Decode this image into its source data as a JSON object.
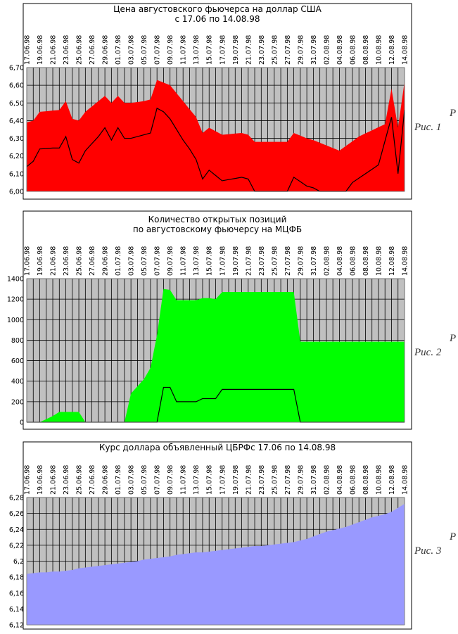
{
  "charts": [
    {
      "chart_data": {
        "type": "area",
        "title": [
          "Цена августовского фьючерса на доллар США",
          "с 17.06 по 14.08.98"
        ],
        "caption_mark": "Р",
        "caption": "Рис. 1",
        "categories": [
          "17.06.98",
          null,
          "19.06.98",
          null,
          "21.06.98",
          null,
          "23.06.98",
          null,
          "25.06.98",
          null,
          "27.06.98",
          null,
          "29.06.98",
          null,
          "01.07.98",
          null,
          "03.07.98",
          null,
          "05.07.98",
          null,
          "07.07.98",
          null,
          "09.07.98",
          null,
          "11.07.98",
          null,
          "13.07.98",
          null,
          "15.07.98",
          null,
          "17.07.98",
          null,
          "19.07.98",
          null,
          "21.07.98",
          null,
          "23.07.98",
          null,
          "25.07.98",
          null,
          "27.07.98",
          null,
          "29.07.98",
          null,
          "31.07.98",
          null,
          "02.08.98",
          null,
          "04.08.98",
          null,
          "06.08.98",
          null,
          "08.08.98",
          null,
          "10.08.98",
          null,
          "12.08.98",
          null,
          "14.08.98"
        ],
        "series": [
          {
            "style": "area",
            "color": "#ff0000",
            "values": [
              6.39,
              6.4,
              6.45,
              6.453,
              6.457,
              6.46,
              6.51,
              6.41,
              6.4,
              6.45,
              6.48,
              6.51,
              6.54,
              6.5,
              6.54,
              6.5,
              6.5,
              6.505,
              6.51,
              6.52,
              6.63,
              6.615,
              6.6,
              6.555,
              6.51,
              6.465,
              6.42,
              6.33,
              6.36,
              6.34,
              6.32,
              6.323,
              6.327,
              6.33,
              6.32,
              6.28,
              6.28,
              6.28,
              6.28,
              6.28,
              6.28,
              6.33,
              6.315,
              6.3,
              6.29,
              6.275,
              6.26,
              6.245,
              6.23,
              6.257,
              6.283,
              6.31,
              6.328,
              6.345,
              6.363,
              6.38,
              6.58,
              6.36,
              6.62
            ]
          },
          {
            "style": "line",
            "color": "#000000",
            "values": [
              6.14,
              6.17,
              6.24,
              6.242,
              6.245,
              6.245,
              6.31,
              6.18,
              6.16,
              6.23,
              6.27,
              6.31,
              6.36,
              6.29,
              6.36,
              6.3,
              6.3,
              6.31,
              6.32,
              6.33,
              6.47,
              6.45,
              6.41,
              6.35,
              6.29,
              6.24,
              6.18,
              6.07,
              6.12,
              6.09,
              6.06,
              6.067,
              6.073,
              6.08,
              6.07,
              6.0,
              6.0,
              6.0,
              6.0,
              6.0,
              6.0,
              6.08,
              6.055,
              6.03,
              6.02,
              6.0,
              6.0,
              6.0,
              6.0,
              6.0,
              6.05,
              6.075,
              6.1,
              6.125,
              6.15,
              6.285,
              6.42,
              6.1,
              6.46
            ]
          }
        ],
        "ylim": [
          6.0,
          6.7
        ],
        "yticks": [
          {
            "value": 6.0,
            "label": "6,00"
          },
          {
            "value": 6.1,
            "label": "6,10"
          },
          {
            "value": 6.2,
            "label": "6,20"
          },
          {
            "value": 6.3,
            "label": "6,30"
          },
          {
            "value": 6.4,
            "label": "6,40"
          },
          {
            "value": 6.5,
            "label": "6,50"
          },
          {
            "value": 6.6,
            "label": "6,60"
          },
          {
            "value": 6.7,
            "label": "6,70"
          }
        ],
        "grid": true,
        "background": "#c0c0c0"
      }
    },
    {
      "chart_data": {
        "type": "area",
        "title": [
          "Количество открытых позиций",
          "по августовскому фьючерсу на МЦФБ"
        ],
        "caption_mark": "Р",
        "caption": "Рис. 2",
        "categories": [
          "17.06.98",
          null,
          "19.06.98",
          null,
          "21.06.98",
          null,
          "23.06.98",
          null,
          "25.06.98",
          null,
          "27.06.98",
          null,
          "29.06.98",
          null,
          "01.07.98",
          null,
          "03.07.98",
          null,
          "05.07.98",
          null,
          "07.07.98",
          null,
          "09.07.98",
          null,
          "11.07.98",
          null,
          "13.07.98",
          null,
          "15.07.98",
          null,
          "17.07.98",
          null,
          "19.07.98",
          null,
          "21.07.98",
          null,
          "23.07.98",
          null,
          "25.07.98",
          null,
          "27.07.98",
          null,
          "29.07.98",
          null,
          "31.07.98",
          null,
          "02.08.98",
          null,
          "04.08.98",
          null,
          "06.08.98",
          null,
          "08.08.98",
          null,
          "10.08.98",
          null,
          "12.08.98",
          null,
          "14.08.98"
        ],
        "series": [
          {
            "style": "area",
            "color": "#00ff00",
            "values": [
              0,
              0,
              0,
              30,
              60,
              100,
              100,
              100,
              100,
              0,
              0,
              0,
              0,
              0,
              0,
              0,
              280,
              350,
              420,
              530,
              850,
              1300,
              1290,
              1190,
              1190,
              1190,
              1190,
              1210,
              1210,
              1200,
              1270,
              1270,
              1270,
              1270,
              1270,
              1270,
              1270,
              1270,
              1270,
              1270,
              1270,
              1270,
              785,
              785,
              785,
              785,
              785,
              785,
              785,
              785,
              785,
              785,
              785,
              785,
              785,
              785,
              785,
              785,
              785
            ]
          },
          {
            "style": "line",
            "color": "#000000",
            "values": [
              0,
              0,
              0,
              0,
              0,
              0,
              0,
              0,
              0,
              0,
              0,
              0,
              0,
              0,
              0,
              0,
              0,
              0,
              0,
              0,
              0,
              340,
              340,
              200,
              200,
              200,
              200,
              230,
              230,
              230,
              320,
              320,
              320,
              320,
              320,
              320,
              320,
              320,
              320,
              320,
              320,
              320,
              0,
              0,
              0,
              0,
              0,
              0,
              0,
              0,
              0,
              0,
              0,
              0,
              0,
              0,
              0,
              0,
              0
            ]
          }
        ],
        "ylim": [
          0,
          1400
        ],
        "yticks": [
          0,
          200,
          400,
          600,
          800,
          1000,
          1200,
          1400
        ],
        "grid": true,
        "background": "#c0c0c0"
      }
    },
    {
      "chart_data": {
        "type": "area",
        "title": [
          "Курс доллара объявленный ЦБРФс 17.06 по 14.08.98"
        ],
        "caption_mark": "Р",
        "caption": "Рис. 3",
        "categories": [
          "17.06.98",
          null,
          "19.06.98",
          null,
          "21.06.98",
          null,
          "23.06.98",
          null,
          "25.06.98",
          null,
          "27.06.98",
          null,
          "29.06.98",
          null,
          "01.07.98",
          null,
          "03.07.98",
          null,
          "05.07.98",
          null,
          "07.07.98",
          null,
          "09.07.98",
          null,
          "11.07.98",
          null,
          "13.07.98",
          null,
          "15.07.98",
          null,
          "17.07.98",
          null,
          "19.07.98",
          null,
          "21.07.98",
          null,
          "23.07.98",
          null,
          "25.07.98",
          null,
          "27.07.98",
          null,
          "29.07.98",
          null,
          "31.07.98",
          null,
          "02.08.98",
          null,
          "04.08.98",
          null,
          "06.08.98",
          null,
          "08.08.98",
          null,
          "10.08.98",
          null,
          "12.08.98",
          null,
          "14.08.98"
        ],
        "series": [
          {
            "style": "area",
            "color": "#9999ff",
            "values": [
              6.184,
              6.185,
              6.186,
              6.186,
              6.187,
              6.187,
              6.188,
              6.189,
              6.191,
              6.192,
              6.193,
              6.194,
              6.195,
              6.196,
              6.197,
              6.198,
              6.199,
              6.2,
              6.202,
              6.203,
              6.204,
              6.205,
              6.206,
              6.208,
              6.209,
              6.21,
              6.211,
              6.211,
              6.212,
              6.213,
              6.214,
              6.215,
              6.216,
              6.217,
              6.218,
              6.219,
              6.219,
              6.22,
              6.221,
              6.222,
              6.223,
              6.224,
              6.226,
              6.228,
              6.231,
              6.234,
              6.237,
              6.239,
              6.241,
              6.243,
              6.246,
              6.249,
              6.252,
              6.255,
              6.257,
              6.259,
              6.262,
              6.267,
              6.272
            ]
          }
        ],
        "ylim": [
          6.12,
          6.28
        ],
        "yticks": [
          {
            "value": 6.12,
            "label": "6,12"
          },
          {
            "value": 6.14,
            "label": "6,14"
          },
          {
            "value": 6.16,
            "label": "6,16"
          },
          {
            "value": 6.18,
            "label": "6,18"
          },
          {
            "value": 6.2,
            "label": "6,2"
          },
          {
            "value": 6.22,
            "label": "6,22"
          },
          {
            "value": 6.24,
            "label": "6,24"
          },
          {
            "value": 6.26,
            "label": "6,26"
          },
          {
            "value": 6.28,
            "label": "6,28"
          }
        ],
        "grid": true,
        "background": "#c0c0c0"
      }
    }
  ]
}
